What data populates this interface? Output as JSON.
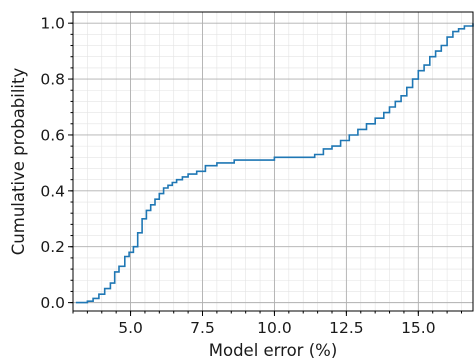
{
  "chart_data": {
    "type": "line",
    "xlabel": "Model error (%)",
    "ylabel": "Cumulative probability",
    "xlim": [
      3.0,
      16.9
    ],
    "ylim": [
      -0.03,
      1.04
    ],
    "xticks": [
      5.0,
      7.5,
      10.0,
      12.5,
      15.0
    ],
    "xtick_labels": [
      "5.0",
      "7.5",
      "10.0",
      "12.5",
      "15.0"
    ],
    "yticks": [
      0.0,
      0.2,
      0.4,
      0.6,
      0.8,
      1.0
    ],
    "ytick_labels": [
      "0.0",
      "0.2",
      "0.4",
      "0.6",
      "0.8",
      "1.0"
    ],
    "grid": true,
    "line_color": "#1f77b4",
    "series": [
      {
        "x": [
          3.1,
          3.5,
          3.7,
          3.9,
          4.1,
          4.3,
          4.45,
          4.6,
          4.8,
          4.95,
          5.1,
          5.25,
          5.4,
          5.55,
          5.7,
          5.85,
          6.0,
          6.15,
          6.3,
          6.45,
          6.6,
          6.8,
          7.0,
          7.3,
          7.6,
          8.0,
          8.3,
          8.6,
          9.0,
          9.5,
          10.0,
          10.5,
          11.0,
          11.4,
          11.7,
          12.0,
          12.3,
          12.6,
          12.9,
          13.2,
          13.5,
          13.8,
          14.0,
          14.2,
          14.4,
          14.6,
          14.8,
          15.0,
          15.2,
          15.4,
          15.6,
          15.8,
          16.0,
          16.2,
          16.4,
          16.6,
          16.9
        ],
        "y": [
          0.0,
          0.005,
          0.015,
          0.03,
          0.05,
          0.07,
          0.11,
          0.13,
          0.165,
          0.18,
          0.2,
          0.25,
          0.3,
          0.33,
          0.35,
          0.37,
          0.39,
          0.41,
          0.42,
          0.43,
          0.44,
          0.45,
          0.46,
          0.47,
          0.49,
          0.5,
          0.5,
          0.51,
          0.51,
          0.51,
          0.52,
          0.52,
          0.52,
          0.53,
          0.55,
          0.56,
          0.58,
          0.6,
          0.62,
          0.64,
          0.66,
          0.68,
          0.7,
          0.72,
          0.74,
          0.77,
          0.8,
          0.83,
          0.85,
          0.88,
          0.9,
          0.92,
          0.95,
          0.97,
          0.98,
          0.99,
          1.0
        ]
      }
    ]
  }
}
